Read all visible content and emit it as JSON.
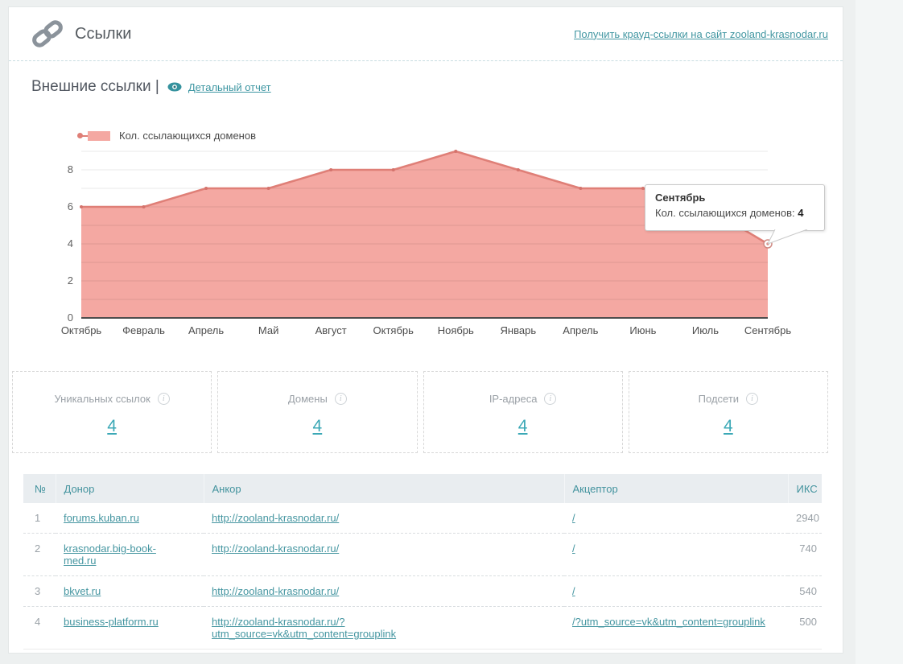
{
  "header": {
    "title": "Ссылки",
    "crowd_link": "Получить крауд-ссылки на сайт zooland-krasnodar.ru"
  },
  "section": {
    "title": "Внешние ссылки |",
    "report_link": "Детальный отчет"
  },
  "chart_data": {
    "type": "area",
    "title": "",
    "categories": [
      "Октябрь",
      "Февраль",
      "Апрель",
      "Май",
      "Август",
      "Октябрь",
      "Ноябрь",
      "Январь",
      "Апрель",
      "Июнь",
      "Июль",
      "Сентябрь"
    ],
    "series": [
      {
        "name": "Кол. ссылающихся доменов",
        "values": [
          6,
          6,
          7,
          7,
          8,
          8,
          9,
          8,
          7,
          7,
          6,
          4
        ]
      }
    ],
    "ylim": [
      0,
      9
    ],
    "yticks": [
      0,
      2,
      4,
      6,
      8
    ],
    "grid": true,
    "legend_position": "top-left",
    "colors": {
      "area_fill": "#f4a8a2",
      "line": "#df7f77",
      "axis": "#4d4d4d"
    },
    "tooltip": {
      "title": "Сентябрь",
      "label": "Кол. ссылающихся доменов:",
      "value": "4",
      "point_index": 11
    }
  },
  "stats": {
    "items": [
      {
        "label": "Уникальных ссылок",
        "value": "4"
      },
      {
        "label": "Домены",
        "value": "4"
      },
      {
        "label": "IP-адреса",
        "value": "4"
      },
      {
        "label": "Подсети",
        "value": "4"
      }
    ]
  },
  "table": {
    "headers": [
      "№",
      "Донор",
      "Анкор",
      "Акцептор",
      "ИКС"
    ],
    "rows": [
      {
        "num": "1",
        "donor": "forums.kuban.ru",
        "anchor": "http://zooland-krasnodar.ru/",
        "acceptor": "/",
        "iks": "2940"
      },
      {
        "num": "2",
        "donor": "krasnodar.big-book-med.ru",
        "anchor": "http://zooland-krasnodar.ru/",
        "acceptor": "/",
        "iks": "740"
      },
      {
        "num": "3",
        "donor": "bkvet.ru",
        "anchor": "http://zooland-krasnodar.ru/",
        "acceptor": "/",
        "iks": "540"
      },
      {
        "num": "4",
        "donor": "business-platform.ru",
        "anchor": "http://zooland-krasnodar.ru/?utm_source=vk&utm_content=grouplink",
        "acceptor": "/?utm_source=vk&utm_content=grouplink",
        "iks": "500"
      }
    ]
  }
}
